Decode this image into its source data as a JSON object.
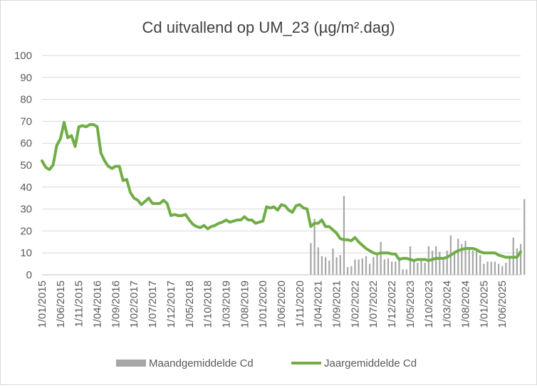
{
  "chart_data": {
    "type": "line",
    "title": "Cd uitvallend op UM_23 (µg/m².dag)",
    "ylim": [
      0,
      100
    ],
    "yticks": [
      "0",
      "10",
      "20",
      "30",
      "40",
      "50",
      "60",
      "70",
      "80",
      "90",
      "100"
    ],
    "xticks": [
      "1/01/2015",
      "1/06/2015",
      "1/11/2015",
      "1/04/2016",
      "1/09/2016",
      "1/02/2017",
      "1/07/2017",
      "1/12/2017",
      "1/05/2018",
      "1/10/2018",
      "1/03/2019",
      "1/08/2019",
      "1/01/2020",
      "1/06/2020",
      "1/11/2020",
      "1/04/2021",
      "1/09/2021",
      "1/02/2022",
      "1/07/2022",
      "1/12/2022",
      "1/05/2023",
      "1/10/2023",
      "1/03/2024",
      "1/08/2024",
      "1/01/2025",
      "1/06/2025"
    ],
    "grid": true,
    "legend_position": "bottom",
    "x_start": "1/01/2015",
    "x_step": "1 month",
    "series": [
      {
        "name": "Maandgemiddelde Cd",
        "kind": "bar",
        "color": "#a6a6a6",
        "values": [
          null,
          null,
          null,
          null,
          null,
          null,
          null,
          null,
          null,
          null,
          null,
          null,
          null,
          null,
          null,
          null,
          null,
          null,
          null,
          null,
          null,
          null,
          null,
          null,
          null,
          null,
          null,
          null,
          null,
          null,
          null,
          null,
          null,
          null,
          null,
          null,
          null,
          null,
          null,
          null,
          null,
          null,
          null,
          null,
          null,
          null,
          null,
          null,
          null,
          null,
          null,
          null,
          null,
          null,
          null,
          null,
          null,
          null,
          null,
          null,
          null,
          null,
          null,
          null,
          null,
          null,
          null,
          null,
          null,
          null,
          null,
          null,
          null,
          14.5,
          25.5,
          12.5,
          8.5,
          8,
          6.5,
          12,
          8,
          9,
          36,
          3.5,
          4,
          7,
          7,
          7.5,
          8.5,
          5,
          8,
          10,
          15,
          7,
          7.5,
          6,
          6,
          8,
          2.5,
          2.5,
          13,
          6,
          5.5,
          7,
          5.5,
          13,
          11,
          13,
          10.5,
          7.5,
          11,
          18,
          11,
          16.5,
          14,
          15.5,
          12,
          11,
          11,
          9,
          5,
          6,
          6,
          6,
          5,
          4,
          5.5,
          7.5,
          17,
          12,
          14,
          34.5
        ]
      },
      {
        "name": "Jaargemiddelde Cd",
        "kind": "line",
        "color": "#70ad47",
        "values": [
          52,
          49,
          48,
          50,
          59,
          62,
          69.5,
          62.5,
          63.5,
          58.5,
          67.5,
          68,
          67.5,
          68.5,
          68.5,
          67.5,
          55.5,
          52,
          49.5,
          48.5,
          49.5,
          49.5,
          43,
          43.5,
          37.5,
          35,
          34,
          32,
          33.5,
          35,
          32.5,
          32.5,
          32.5,
          34,
          32.5,
          27,
          27.5,
          27,
          27,
          27.5,
          25,
          23,
          22,
          21.5,
          22.5,
          21,
          22,
          22.5,
          23.5,
          24,
          25,
          24,
          24.5,
          25,
          25,
          26.5,
          25,
          25,
          23.5,
          24,
          24.5,
          31,
          30.5,
          31,
          29.5,
          32,
          31.5,
          29.5,
          28.5,
          31.5,
          32,
          30.5,
          30,
          22,
          23.5,
          23.5,
          25,
          22,
          22,
          20.5,
          19,
          16.5,
          16,
          16,
          15.5,
          17,
          15,
          13.5,
          12,
          11,
          10,
          9.5,
          10,
          10,
          10,
          9.5,
          9.5,
          7,
          7.5,
          7.5,
          7,
          6.5,
          7,
          7,
          7,
          6.5,
          7,
          7.5,
          7.5,
          7.5,
          8,
          9,
          10,
          11,
          11.5,
          12,
          12,
          12,
          11.5,
          10.5,
          10,
          10,
          10,
          10,
          9,
          8.5,
          8,
          8,
          8,
          8,
          10.5
        ]
      }
    ]
  }
}
